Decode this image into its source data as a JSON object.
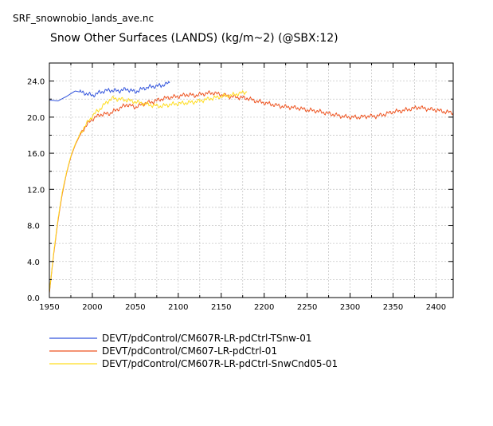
{
  "file_title": "SRF_snownobio_lands_ave.nc",
  "chart_data": {
    "type": "line",
    "title": "Snow Other Surfaces (LANDS) (kg/m~2) (@SBX:12)",
    "xlabel": "",
    "ylabel": "",
    "xlim": [
      1950,
      2420
    ],
    "ylim": [
      0,
      26
    ],
    "xticks": [
      1950,
      2000,
      2050,
      2100,
      2150,
      2200,
      2250,
      2300,
      2350,
      2400
    ],
    "yticks": [
      0.0,
      4.0,
      8.0,
      12.0,
      16.0,
      20.0,
      24.0
    ],
    "ytick_labels": [
      "0.0",
      "4.0",
      "8.0",
      "12.0",
      "16.0",
      "20.0",
      "24.0"
    ],
    "grid": true,
    "legend_position": "bottom-left",
    "series": [
      {
        "name": "DEVT/pdControl/CM607R-LR-pdCtrl-TSnw-01",
        "color": "#3355dd",
        "x": [
          1950,
          1960,
          1970,
          1980,
          1990,
          2000,
          2010,
          2020,
          2030,
          2040,
          2050,
          2060,
          2070,
          2080,
          2090
        ],
        "y": [
          21.9,
          21.8,
          22.3,
          22.9,
          22.7,
          22.4,
          22.8,
          23.0,
          22.9,
          23.1,
          22.8,
          23.2,
          23.4,
          23.5,
          23.8
        ]
      },
      {
        "name": "DEVT/pdControl/CM607-LR-pdCtrl-01",
        "color": "#ee5522",
        "x": [
          1950,
          1955,
          1960,
          1965,
          1970,
          1975,
          1980,
          1985,
          1990,
          1995,
          2000,
          2010,
          2020,
          2030,
          2040,
          2050,
          2060,
          2070,
          2080,
          2090,
          2100,
          2110,
          2120,
          2130,
          2140,
          2150,
          2160,
          2170,
          2180,
          2190,
          2200,
          2210,
          2220,
          2230,
          2240,
          2250,
          2260,
          2270,
          2280,
          2290,
          2300,
          2310,
          2320,
          2330,
          2340,
          2350,
          2360,
          2370,
          2380,
          2390,
          2400,
          2410,
          2420
        ],
        "y": [
          0.5,
          4.8,
          8.5,
          11.5,
          13.8,
          15.6,
          16.9,
          17.9,
          18.7,
          19.3,
          19.8,
          20.3,
          20.4,
          20.9,
          21.4,
          21.1,
          21.5,
          21.7,
          22.0,
          22.2,
          22.3,
          22.5,
          22.4,
          22.6,
          22.7,
          22.5,
          22.3,
          22.2,
          22.1,
          21.8,
          21.6,
          21.4,
          21.2,
          21.1,
          21.0,
          20.8,
          20.7,
          20.5,
          20.3,
          20.1,
          20.0,
          20.0,
          20.1,
          20.1,
          20.3,
          20.6,
          20.7,
          20.9,
          21.1,
          20.9,
          20.8,
          20.6,
          20.5
        ]
      },
      {
        "name": "DEVT/pdControl/CM607R-LR-pdCtrl-SnwCnd05-01",
        "color": "#ffdd22",
        "x": [
          1950,
          1955,
          1960,
          1965,
          1970,
          1975,
          1980,
          1985,
          1990,
          1995,
          2000,
          2005,
          2010,
          2015,
          2020,
          2025,
          2030,
          2040,
          2050,
          2060,
          2070,
          2080,
          2090,
          2100,
          2110,
          2120,
          2130,
          2140,
          2150,
          2160,
          2170,
          2180
        ],
        "y": [
          0.6,
          5.0,
          8.7,
          11.7,
          13.9,
          15.7,
          17.0,
          18.0,
          18.8,
          19.5,
          20.1,
          20.6,
          21.0,
          21.5,
          21.9,
          22.1,
          22.0,
          21.9,
          21.7,
          21.5,
          21.3,
          21.2,
          21.4,
          21.5,
          21.6,
          21.7,
          21.9,
          22.1,
          22.3,
          22.4,
          22.6,
          22.8
        ]
      }
    ]
  }
}
